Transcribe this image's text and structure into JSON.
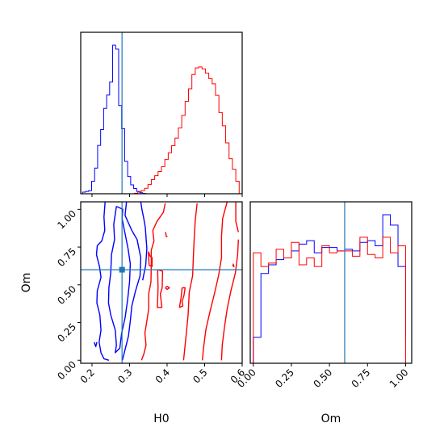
{
  "colors": {
    "series_a": "#0000ff",
    "series_b": "#ff0000",
    "truth": "#1f77b4",
    "axes": "#000000"
  },
  "chart_data": [
    {
      "type": "histogram",
      "panel": "H0 marginal",
      "xlim": [
        0.17,
        0.6
      ],
      "truth_x": 0.28,
      "ticks": [
        0.2,
        0.3,
        0.4,
        0.5,
        0.6
      ],
      "series": [
        {
          "color_key": "series_a",
          "bins": [
            0.175,
            0.183,
            0.191,
            0.199,
            0.207,
            0.215,
            0.223,
            0.231,
            0.239,
            0.247,
            0.255,
            0.263,
            0.271,
            0.279,
            0.287,
            0.295,
            0.303,
            0.311,
            0.319,
            0.327,
            0.335,
            0.343
          ],
          "counts": [
            0.6,
            0.9,
            1.2,
            4.8,
            9.8,
            18.5,
            24.6,
            32.7,
            37.8,
            42.8,
            56.9,
            55.4,
            33.8,
            24.9,
            12.4,
            6.6,
            3.4,
            2.0,
            0.9,
            0.4,
            0.1
          ]
        },
        {
          "color_key": "series_b",
          "bins": [
            0.313,
            0.322,
            0.331,
            0.34,
            0.349,
            0.358,
            0.367,
            0.376,
            0.385,
            0.394,
            0.403,
            0.412,
            0.421,
            0.43,
            0.439,
            0.448,
            0.457,
            0.466,
            0.475,
            0.484,
            0.493,
            0.502,
            0.511,
            0.52,
            0.529,
            0.538,
            0.547,
            0.556,
            0.565,
            0.574,
            0.583,
            0.592,
            0.601
          ],
          "counts": [
            0.2,
            0.7,
            1.2,
            2.1,
            3.5,
            5.4,
            6.9,
            8.5,
            10.4,
            13.1,
            15.7,
            18.4,
            21.3,
            25.2,
            30.0,
            35.4,
            40.2,
            45.7,
            48.2,
            48.6,
            47.8,
            46.2,
            44.1,
            42.1,
            37.7,
            31.1,
            26.0,
            19.5,
            13.4,
            9.4,
            4.8,
            0.0
          ]
        }
      ]
    },
    {
      "type": "contour",
      "panel": "H0 vs Om",
      "xlabel": "H0",
      "ylabel": "Om",
      "xlim": [
        0.17,
        0.6
      ],
      "ylim": [
        -0.02,
        1.05
      ],
      "xticks": [
        "0.2",
        "0.3",
        "0.4",
        "0.5",
        "0.6"
      ],
      "yticks": [
        "0.00",
        "0.25",
        "0.50",
        "0.75",
        "1.00"
      ],
      "xtick_values": [
        0.2,
        0.3,
        0.4,
        0.5,
        0.6
      ],
      "ytick_values": [
        0.0,
        0.25,
        0.5,
        0.75,
        1.0
      ],
      "truth": [
        0.28,
        0.6
      ],
      "series": [
        {
          "color_key": "series_a",
          "contours": [
            [
              [
                0.235,
                1.05
              ],
              [
                0.232,
                0.95
              ],
              [
                0.234,
                0.86
              ],
              [
                0.226,
                0.79
              ],
              [
                0.214,
                0.76
              ],
              [
                0.212,
                0.7
              ],
              [
                0.22,
                0.62
              ],
              [
                0.224,
                0.55
              ],
              [
                0.214,
                0.46
              ],
              [
                0.213,
                0.38
              ],
              [
                0.221,
                0.3
              ],
              [
                0.224,
                0.2
              ],
              [
                0.219,
                0.12
              ],
              [
                0.224,
                0.05
              ],
              [
                0.232,
                0.01
              ],
              [
                0.245,
                0.0
              ]
            ],
            [
              [
                0.265,
                1.02
              ],
              [
                0.258,
                0.9
              ],
              [
                0.26,
                0.8
              ],
              [
                0.252,
                0.7
              ],
              [
                0.25,
                0.58
              ],
              [
                0.245,
                0.48
              ],
              [
                0.244,
                0.38
              ],
              [
                0.25,
                0.3
              ],
              [
                0.262,
                0.2
              ],
              [
                0.265,
                0.1
              ],
              [
                0.262,
                0.05
              ],
              [
                0.274,
                0.08
              ],
              [
                0.279,
                0.18
              ],
              [
                0.288,
                0.28
              ],
              [
                0.295,
                0.4
              ],
              [
                0.3,
                0.52
              ],
              [
                0.302,
                0.64
              ],
              [
                0.296,
                0.74
              ],
              [
                0.288,
                0.84
              ],
              [
                0.28,
                0.94
              ],
              [
                0.282,
                1.0
              ],
              [
                0.265,
                1.02
              ]
            ],
            [
              [
                0.292,
                1.05
              ],
              [
                0.288,
                0.96
              ],
              [
                0.306,
                0.86
              ],
              [
                0.32,
                0.8
              ],
              [
                0.33,
                0.68
              ],
              [
                0.328,
                0.56
              ],
              [
                0.316,
                0.46
              ],
              [
                0.306,
                0.36
              ],
              [
                0.302,
                0.26
              ],
              [
                0.297,
                0.16
              ],
              [
                0.288,
                0.07
              ],
              [
                0.281,
                0.0
              ]
            ],
            [
              [
                0.33,
                1.05
              ],
              [
                0.333,
                1.0
              ],
              [
                0.338,
                0.94
              ],
              [
                0.342,
                0.88
              ],
              [
                0.346,
                0.74
              ],
              [
                0.343,
                0.63
              ],
              [
                0.335,
                0.53
              ]
            ],
            [
              [
                0.206,
                0.12
              ],
              [
                0.21,
                0.09
              ],
              [
                0.213,
                0.12
              ]
            ]
          ]
        },
        {
          "color_key": "series_b",
          "contours": [
            [
              [
                0.395,
                1.04
              ],
              [
                0.39,
                0.98
              ],
              [
                0.373,
                0.92
              ],
              [
                0.362,
                0.86
              ],
              [
                0.365,
                0.79
              ],
              [
                0.358,
                0.73
              ],
              [
                0.358,
                0.64
              ],
              [
                0.357,
                0.52
              ],
              [
                0.351,
                0.44
              ],
              [
                0.351,
                0.34
              ],
              [
                0.346,
                0.26
              ],
              [
                0.341,
                0.18
              ],
              [
                0.344,
                0.1
              ],
              [
                0.338,
                0.04
              ],
              [
                0.332,
                0.0
              ]
            ],
            [
              [
                0.35,
                0.72
              ],
              [
                0.355,
                0.69
              ],
              [
                0.36,
                0.68
              ],
              [
                0.36,
                0.62
              ],
              [
                0.352,
                0.63
              ],
              [
                0.35,
                0.72
              ]
            ],
            [
              [
                0.396,
                0.85
              ],
              [
                0.398,
                0.82
              ],
              [
                0.401,
                0.82
              ]
            ],
            [
              [
                0.375,
                0.6
              ],
              [
                0.388,
                0.59
              ],
              [
                0.387,
                0.48
              ],
              [
                0.382,
                0.44
              ],
              [
                0.386,
                0.35
              ],
              [
                0.374,
                0.35
              ],
              [
                0.376,
                0.48
              ],
              [
                0.375,
                0.6
              ]
            ],
            [
              [
                0.395,
                0.48
              ],
              [
                0.4,
                0.47
              ],
              [
                0.406,
                0.48
              ],
              [
                0.4,
                0.49
              ],
              [
                0.395,
                0.48
              ]
            ],
            [
              [
                0.44,
                0.48
              ],
              [
                0.448,
                0.48
              ],
              [
                0.445,
                0.43
              ],
              [
                0.44,
                0.39
              ],
              [
                0.442,
                0.36
              ],
              [
                0.433,
                0.35
              ],
              [
                0.437,
                0.41
              ],
              [
                0.44,
                0.48
              ]
            ],
            [
              [
                0.48,
                1.04
              ],
              [
                0.475,
                0.93
              ],
              [
                0.472,
                0.8
              ],
              [
                0.47,
                0.68
              ],
              [
                0.468,
                0.56
              ],
              [
                0.459,
                0.45
              ],
              [
                0.456,
                0.3
              ],
              [
                0.452,
                0.2
              ],
              [
                0.448,
                0.1
              ],
              [
                0.444,
                0.0
              ]
            ],
            [
              [
                0.56,
                1.05
              ],
              [
                0.548,
                0.94
              ],
              [
                0.545,
                0.82
              ],
              [
                0.545,
                0.68
              ],
              [
                0.537,
                0.56
              ],
              [
                0.526,
                0.44
              ],
              [
                0.514,
                0.32
              ],
              [
                0.503,
                0.2
              ],
              [
                0.497,
                0.08
              ],
              [
                0.494,
                0.0
              ]
            ],
            [
              [
                0.59,
                0.8
              ],
              [
                0.588,
                0.7
              ],
              [
                0.582,
                0.58
              ],
              [
                0.57,
                0.46
              ],
              [
                0.56,
                0.34
              ],
              [
                0.553,
                0.22
              ],
              [
                0.547,
                0.1
              ],
              [
                0.545,
                0.0
              ]
            ],
            [
              [
                0.583,
                1.05
              ],
              [
                0.583,
                0.92
              ],
              [
                0.59,
                0.85
              ]
            ],
            [
              [
                0.574,
                0.63
              ],
              [
                0.578,
                0.62
              ],
              [
                0.576,
                0.64
              ]
            ]
          ]
        }
      ]
    },
    {
      "type": "histogram",
      "panel": "Om marginal",
      "xlabel": "Om",
      "xlim": [
        -0.02,
        1.04
      ],
      "ticks": [
        "0.00",
        "0.25",
        "0.50",
        "0.75",
        "1.00"
      ],
      "tick_values": [
        0.0,
        0.25,
        0.5,
        0.75,
        1.0
      ],
      "truth_x": 0.6,
      "series": [
        {
          "color_key": "series_a",
          "bins": [
            0.0,
            0.05,
            0.1,
            0.15,
            0.2,
            0.25,
            0.3,
            0.35,
            0.4,
            0.45,
            0.5,
            0.55,
            0.6,
            0.65,
            0.7,
            0.75,
            0.8,
            0.85,
            0.9,
            0.95,
            1.0
          ],
          "counts": [
            15,
            52,
            57,
            60,
            61,
            65,
            69,
            71,
            64,
            67,
            67,
            65,
            66,
            65,
            70,
            71,
            68,
            86,
            80,
            56,
            15
          ]
        },
        {
          "color_key": "series_b",
          "bins": [
            0.0,
            0.05,
            0.1,
            0.15,
            0.2,
            0.25,
            0.3,
            0.35,
            0.4,
            0.45,
            0.5,
            0.55,
            0.6,
            0.65,
            0.7,
            0.75,
            0.8,
            0.85,
            0.9,
            0.95,
            1.0
          ],
          "counts": [
            64,
            56,
            58,
            66,
            61,
            70,
            57,
            61,
            56,
            68,
            64,
            65,
            65,
            62,
            73,
            63,
            61,
            73,
            64,
            68,
            0
          ]
        }
      ]
    }
  ]
}
